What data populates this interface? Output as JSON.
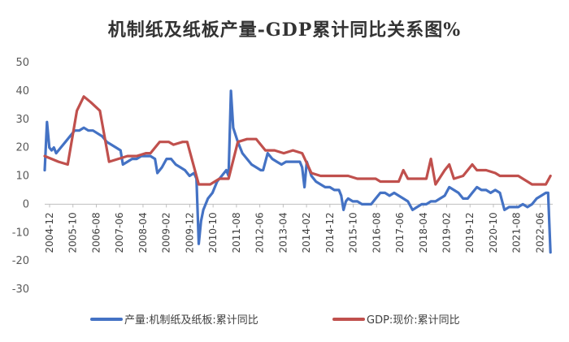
{
  "chart_data": {
    "type": "line",
    "title": "机制纸及纸板产量-GDP累计同比关系图%",
    "xlabel": "",
    "ylabel": "",
    "ylim": [
      -30,
      50
    ],
    "yticks": [
      50,
      40,
      30,
      20,
      10,
      0,
      -10,
      -20,
      -30
    ],
    "grid": false,
    "legend_position": "bottom",
    "x_ticks": [
      "2004-12",
      "2005-10",
      "2006-08",
      "2007-06",
      "2008-04",
      "2009-02",
      "2009-12",
      "2010-10",
      "2011-08",
      "2012-06",
      "2013-04",
      "2014-02",
      "2014-12",
      "2015-10",
      "2016-08",
      "2017-06",
      "2018-04",
      "2019-02",
      "2019-12",
      "2020-10",
      "2021-08",
      "2022-06"
    ],
    "x_range": [
      0,
      221
    ],
    "series": [
      {
        "name": "产量:机制纸及纸板:累计同比",
        "color": "#4472C4",
        "points": [
          [
            0,
            12
          ],
          [
            1,
            29
          ],
          [
            2,
            20
          ],
          [
            3,
            19
          ],
          [
            4,
            20
          ],
          [
            5,
            18
          ],
          [
            7,
            20
          ],
          [
            9,
            22
          ],
          [
            11,
            24
          ],
          [
            13,
            26
          ],
          [
            15,
            26
          ],
          [
            17,
            27
          ],
          [
            19,
            26
          ],
          [
            21,
            26
          ],
          [
            23,
            25
          ],
          [
            25,
            24
          ],
          [
            27,
            22
          ],
          [
            29,
            21
          ],
          [
            31,
            20
          ],
          [
            33,
            19
          ],
          [
            34,
            14
          ],
          [
            36,
            15
          ],
          [
            38,
            16
          ],
          [
            40,
            16
          ],
          [
            42,
            17
          ],
          [
            44,
            17
          ],
          [
            46,
            17
          ],
          [
            48,
            16
          ],
          [
            49,
            11
          ],
          [
            51,
            13
          ],
          [
            53,
            16
          ],
          [
            55,
            16
          ],
          [
            57,
            14
          ],
          [
            59,
            13
          ],
          [
            61,
            12
          ],
          [
            63,
            10
          ],
          [
            65,
            11
          ],
          [
            66,
            9
          ],
          [
            67,
            -14
          ],
          [
            68,
            -6
          ],
          [
            69,
            -2
          ],
          [
            71,
            2
          ],
          [
            73,
            4
          ],
          [
            75,
            8
          ],
          [
            77,
            10
          ],
          [
            79,
            12
          ],
          [
            80,
            10
          ],
          [
            81,
            40
          ],
          [
            82,
            27
          ],
          [
            84,
            22
          ],
          [
            86,
            18
          ],
          [
            88,
            16
          ],
          [
            90,
            14
          ],
          [
            92,
            13
          ],
          [
            94,
            12
          ],
          [
            95,
            12
          ],
          [
            97,
            18
          ],
          [
            99,
            16
          ],
          [
            101,
            15
          ],
          [
            103,
            14
          ],
          [
            105,
            15
          ],
          [
            107,
            15
          ],
          [
            109,
            15
          ],
          [
            111,
            15
          ],
          [
            112,
            13
          ],
          [
            113,
            6
          ],
          [
            114,
            15
          ],
          [
            116,
            10
          ],
          [
            118,
            8
          ],
          [
            120,
            7
          ],
          [
            122,
            6
          ],
          [
            124,
            6
          ],
          [
            126,
            5
          ],
          [
            128,
            5
          ],
          [
            129,
            3
          ],
          [
            130,
            -2
          ],
          [
            131,
            1
          ],
          [
            132,
            2
          ],
          [
            134,
            1
          ],
          [
            136,
            1
          ],
          [
            138,
            0
          ],
          [
            140,
            0
          ],
          [
            142,
            0
          ],
          [
            144,
            2
          ],
          [
            146,
            4
          ],
          [
            148,
            4
          ],
          [
            150,
            3
          ],
          [
            152,
            4
          ],
          [
            154,
            3
          ],
          [
            156,
            2
          ],
          [
            158,
            1
          ],
          [
            160,
            -2
          ],
          [
            162,
            -1
          ],
          [
            164,
            0
          ],
          [
            166,
            0
          ],
          [
            168,
            1
          ],
          [
            170,
            1
          ],
          [
            172,
            2
          ],
          [
            174,
            3
          ],
          [
            176,
            6
          ],
          [
            178,
            5
          ],
          [
            180,
            4
          ],
          [
            182,
            2
          ],
          [
            184,
            2
          ],
          [
            186,
            4
          ],
          [
            188,
            6
          ],
          [
            190,
            5
          ],
          [
            192,
            5
          ],
          [
            194,
            4
          ],
          [
            196,
            5
          ],
          [
            198,
            4
          ],
          [
            200,
            -2
          ],
          [
            202,
            -1
          ],
          [
            204,
            -1
          ],
          [
            206,
            -1
          ],
          [
            208,
            0
          ],
          [
            210,
            -1
          ],
          [
            212,
            0
          ],
          [
            214,
            2
          ],
          [
            216,
            3
          ],
          [
            218,
            4
          ],
          [
            219,
            4
          ],
          [
            220,
            -17
          ]
        ]
      },
      {
        "name": "GDP:现价:累计同比",
        "color": "#C0504D",
        "points": [
          [
            0,
            17
          ],
          [
            6,
            15
          ],
          [
            10,
            14
          ],
          [
            14,
            33
          ],
          [
            17,
            38
          ],
          [
            20,
            36
          ],
          [
            24,
            33
          ],
          [
            28,
            15
          ],
          [
            32,
            16
          ],
          [
            36,
            17
          ],
          [
            40,
            17
          ],
          [
            44,
            18
          ],
          [
            46,
            18
          ],
          [
            50,
            22
          ],
          [
            54,
            22
          ],
          [
            56,
            21
          ],
          [
            60,
            22
          ],
          [
            62,
            22
          ],
          [
            67,
            7
          ],
          [
            72,
            7
          ],
          [
            76,
            9
          ],
          [
            80,
            9
          ],
          [
            84,
            22
          ],
          [
            88,
            23
          ],
          [
            92,
            23
          ],
          [
            96,
            19
          ],
          [
            100,
            19
          ],
          [
            104,
            18
          ],
          [
            108,
            19
          ],
          [
            112,
            18
          ],
          [
            116,
            11
          ],
          [
            120,
            10
          ],
          [
            124,
            10
          ],
          [
            128,
            10
          ],
          [
            132,
            10
          ],
          [
            136,
            9
          ],
          [
            140,
            9
          ],
          [
            144,
            9
          ],
          [
            146,
            8
          ],
          [
            150,
            8
          ],
          [
            154,
            8
          ],
          [
            156,
            12
          ],
          [
            158,
            9
          ],
          [
            162,
            9
          ],
          [
            166,
            9
          ],
          [
            168,
            16
          ],
          [
            170,
            7
          ],
          [
            174,
            12
          ],
          [
            176,
            14
          ],
          [
            178,
            9
          ],
          [
            182,
            10
          ],
          [
            186,
            14
          ],
          [
            188,
            12
          ],
          [
            192,
            12
          ],
          [
            196,
            11
          ],
          [
            198,
            10
          ],
          [
            202,
            10
          ],
          [
            206,
            10
          ],
          [
            208,
            9
          ],
          [
            210,
            8
          ],
          [
            212,
            7
          ],
          [
            216,
            7
          ],
          [
            218,
            7
          ],
          [
            220,
            10
          ]
        ]
      }
    ]
  }
}
